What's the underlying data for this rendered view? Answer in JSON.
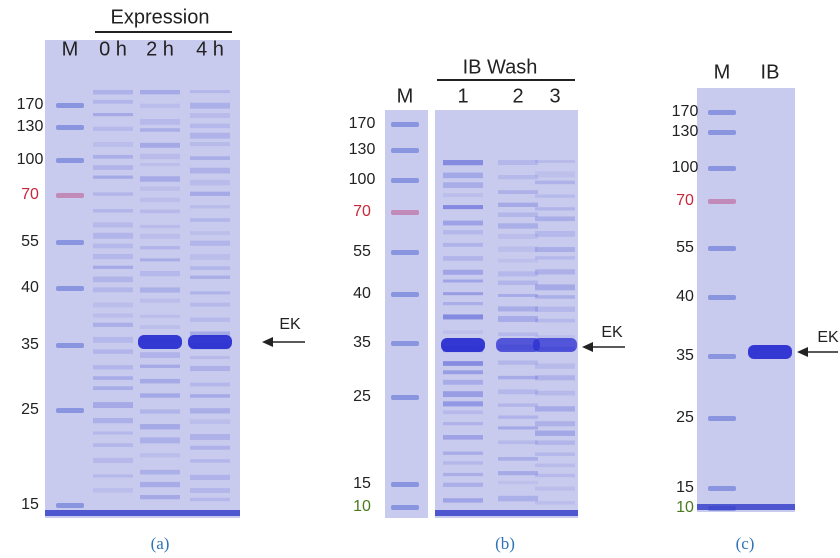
{
  "panels": [
    {
      "caption": "(a)",
      "group_label": "Expression",
      "lanes": [
        "M",
        "0 h",
        "2 h",
        "4 h"
      ],
      "arrow_label": "EK",
      "markers": [
        {
          "label": "170",
          "color": "#222"
        },
        {
          "label": "130",
          "color": "#222"
        },
        {
          "label": "100",
          "color": "#222"
        },
        {
          "label": "70",
          "color": "#c8283c"
        },
        {
          "label": "55",
          "color": "#222"
        },
        {
          "label": "40",
          "color": "#222"
        },
        {
          "label": "35",
          "color": "#222"
        },
        {
          "label": "25",
          "color": "#222"
        },
        {
          "label": "15",
          "color": "#222"
        }
      ]
    },
    {
      "caption": "(b)",
      "group_label": "IB Wash",
      "lanes": [
        "M",
        "1",
        "2",
        "3"
      ],
      "arrow_label": "EK",
      "markers": [
        {
          "label": "170",
          "color": "#222"
        },
        {
          "label": "130",
          "color": "#222"
        },
        {
          "label": "100",
          "color": "#222"
        },
        {
          "label": "70",
          "color": "#c8283c"
        },
        {
          "label": "55",
          "color": "#222"
        },
        {
          "label": "40",
          "color": "#222"
        },
        {
          "label": "35",
          "color": "#222"
        },
        {
          "label": "25",
          "color": "#222"
        },
        {
          "label": "15",
          "color": "#222"
        },
        {
          "label": "10",
          "color": "#4a7a1e"
        }
      ]
    },
    {
      "caption": "(c)",
      "lanes": [
        "M",
        "IB"
      ],
      "arrow_label": "EK",
      "markers": [
        {
          "label": "170",
          "color": "#222"
        },
        {
          "label": "130",
          "color": "#222"
        },
        {
          "label": "100",
          "color": "#222"
        },
        {
          "label": "70",
          "color": "#c8283c"
        },
        {
          "label": "55",
          "color": "#222"
        },
        {
          "label": "40",
          "color": "#222"
        },
        {
          "label": "35",
          "color": "#222"
        },
        {
          "label": "25",
          "color": "#222"
        },
        {
          "label": "15",
          "color": "#222"
        },
        {
          "label": "10",
          "color": "#4a7a1e"
        }
      ]
    }
  ]
}
